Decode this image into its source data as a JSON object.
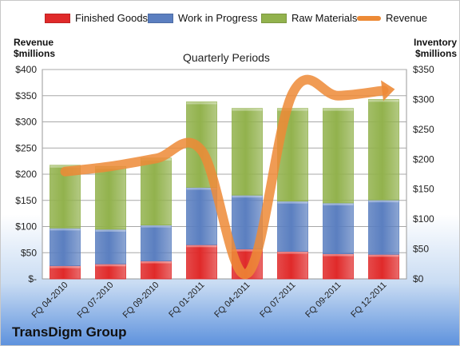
{
  "company": "TransDigm Group",
  "chart_data": {
    "type": "bar",
    "subtitle": "Quarterly Periods",
    "left_axis_title": [
      "Revenue",
      "$millions"
    ],
    "right_axis_title": [
      "Inventory",
      "$millions"
    ],
    "categories": [
      "FQ 04-2010",
      "FQ 07-2010",
      "FQ 09-2010",
      "FQ 01-2011",
      "FQ 04-2011",
      "FQ 07-2011",
      "FQ 09-2011",
      "FQ 12-2011"
    ],
    "stacked_series": [
      {
        "name": "Finished Goods",
        "color": "#e02a2a",
        "values": [
          22,
          25,
          30,
          57,
          50,
          46,
          42,
          41
        ]
      },
      {
        "name": "Work in Progress",
        "color": "#5b7fc0",
        "values": [
          63,
          58,
          60,
          96,
          90,
          84,
          85,
          91
        ]
      },
      {
        "name": "Raw Materials",
        "color": "#92b24d",
        "values": [
          105,
          105,
          112,
          143,
          145,
          155,
          158,
          168
        ]
      }
    ],
    "line_series": {
      "name": "Revenue",
      "color": "#ed8a36",
      "values": [
        205,
        215,
        230,
        245,
        10,
        355,
        350,
        360
      ]
    },
    "y_left": {
      "min": 0,
      "max": 400,
      "ticks": [
        0,
        50,
        100,
        150,
        200,
        250,
        300,
        350,
        400
      ],
      "tick_labels": [
        "$-",
        "$50",
        "$100",
        "$150",
        "$200",
        "$250",
        "$300",
        "$350",
        "$400"
      ]
    },
    "y_right": {
      "min": 0,
      "max": 350,
      "ticks": [
        0,
        50,
        100,
        150,
        200,
        250,
        300,
        350
      ],
      "tick_labels": [
        "$0",
        "$50",
        "$100",
        "$150",
        "$200",
        "$250",
        "$300",
        "$350"
      ]
    },
    "legend_position": "top",
    "grid": true
  }
}
